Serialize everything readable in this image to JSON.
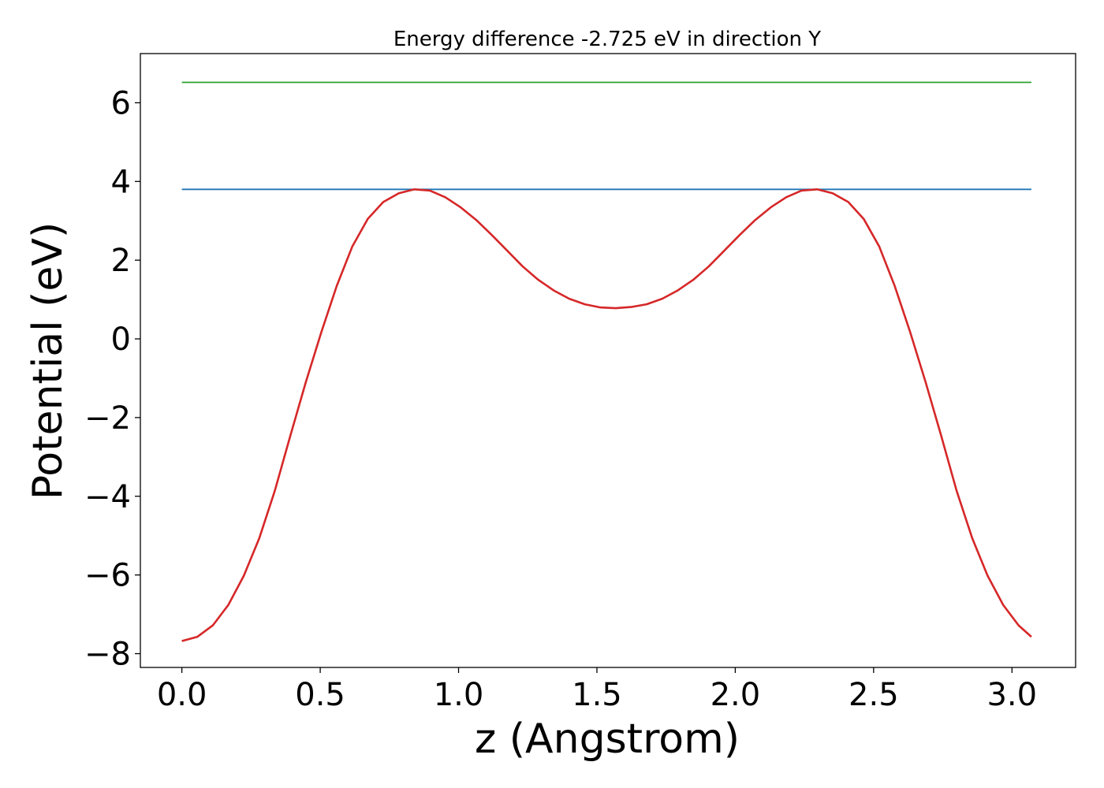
{
  "chart_data": {
    "type": "line",
    "title": "Energy difference -2.725 eV in direction Y",
    "xlabel": "z (Angstrom)",
    "ylabel": "Potential (eV)",
    "xlim": [
      -0.15,
      3.23
    ],
    "ylim": [
      -8.35,
      7.25
    ],
    "xticks": [
      0.0,
      0.5,
      1.0,
      1.5,
      2.0,
      2.5,
      3.0
    ],
    "xtick_labels": [
      "0.0",
      "0.5",
      "1.0",
      "1.5",
      "2.0",
      "2.5",
      "3.0"
    ],
    "yticks": [
      -8,
      -6,
      -4,
      -2,
      0,
      2,
      4,
      6
    ],
    "ytick_labels": [
      "−8",
      "−6",
      "−4",
      "−2",
      "0",
      "2",
      "4",
      "6"
    ],
    "grid": false,
    "legend": "none",
    "series": [
      {
        "color": "#2ca02c",
        "x": [
          0.0,
          3.07
        ],
        "y": [
          6.52,
          6.52
        ]
      },
      {
        "color": "#1f77b4",
        "x": [
          0.0,
          3.07
        ],
        "y": [
          3.8,
          3.8
        ]
      },
      {
        "color": "#d62728",
        "x": [
          0.0,
          0.056,
          0.112,
          0.168,
          0.224,
          0.28,
          0.336,
          0.392,
          0.448,
          0.504,
          0.56,
          0.616,
          0.672,
          0.728,
          0.784,
          0.84,
          0.896,
          0.952,
          1.008,
          1.064,
          1.12,
          1.176,
          1.232,
          1.288,
          1.344,
          1.4,
          1.456,
          1.512,
          1.568,
          1.624,
          1.68,
          1.736,
          1.792,
          1.848,
          1.904,
          1.96,
          2.016,
          2.072,
          2.128,
          2.184,
          2.24,
          2.296,
          2.352,
          2.408,
          2.464,
          2.52,
          2.576,
          2.632,
          2.688,
          2.744,
          2.8,
          2.856,
          2.912,
          2.968,
          3.024,
          3.07
        ],
        "y": [
          -7.68,
          -7.57,
          -7.28,
          -6.76,
          -6.02,
          -5.06,
          -3.86,
          -2.46,
          -1.1,
          0.17,
          1.35,
          2.35,
          3.05,
          3.48,
          3.7,
          3.8,
          3.77,
          3.6,
          3.34,
          3.02,
          2.64,
          2.24,
          1.84,
          1.5,
          1.23,
          1.02,
          0.88,
          0.8,
          0.78,
          0.81,
          0.88,
          1.02,
          1.23,
          1.5,
          1.84,
          2.24,
          2.64,
          3.02,
          3.34,
          3.6,
          3.77,
          3.8,
          3.7,
          3.48,
          3.05,
          2.35,
          1.35,
          0.17,
          -1.1,
          -2.46,
          -3.86,
          -5.06,
          -6.02,
          -6.76,
          -7.28,
          -7.57
        ]
      }
    ]
  }
}
